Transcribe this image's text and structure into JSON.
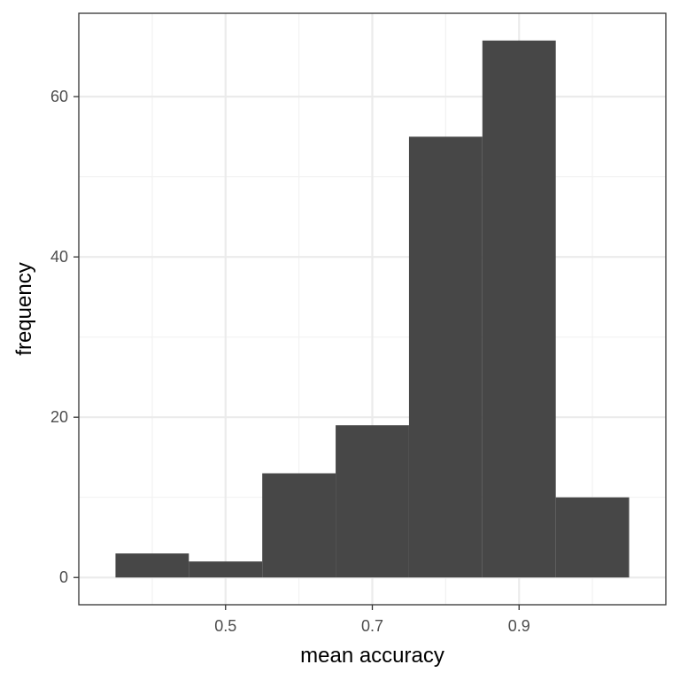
{
  "chart_data": {
    "type": "bar",
    "subtype": "histogram",
    "title": "",
    "xlabel": "mean accuracy",
    "ylabel": "frequency",
    "bins": [
      {
        "x0": 0.35,
        "x1": 0.45,
        "count": 3
      },
      {
        "x0": 0.45,
        "x1": 0.55,
        "count": 2
      },
      {
        "x0": 0.55,
        "x1": 0.65,
        "count": 13
      },
      {
        "x0": 0.65,
        "x1": 0.75,
        "count": 19
      },
      {
        "x0": 0.75,
        "x1": 0.85,
        "count": 55
      },
      {
        "x0": 0.85,
        "x1": 0.95,
        "count": 67
      },
      {
        "x0": 0.95,
        "x1": 1.05,
        "count": 10
      }
    ],
    "xlim": [
      0.3,
      1.1
    ],
    "ylim": [
      -3.4,
      70.4
    ],
    "x_ticks": [
      0.5,
      0.7,
      0.9
    ],
    "x_tick_labels": [
      "0.5",
      "0.7",
      "0.9"
    ],
    "x_minor_ticks": [
      0.4,
      0.6,
      0.8,
      1.0
    ],
    "y_ticks": [
      0,
      20,
      40,
      60
    ],
    "y_tick_labels": [
      "0",
      "20",
      "40",
      "60"
    ],
    "y_minor_ticks": [
      10,
      30,
      50
    ],
    "grid": true,
    "legend": "none",
    "colors": {
      "bar": "#474747",
      "grid_major": "#ebebeb",
      "grid_minor": "#f2f2f2",
      "panel_border": "#333333",
      "tick_label": "#4d4d4d"
    }
  }
}
